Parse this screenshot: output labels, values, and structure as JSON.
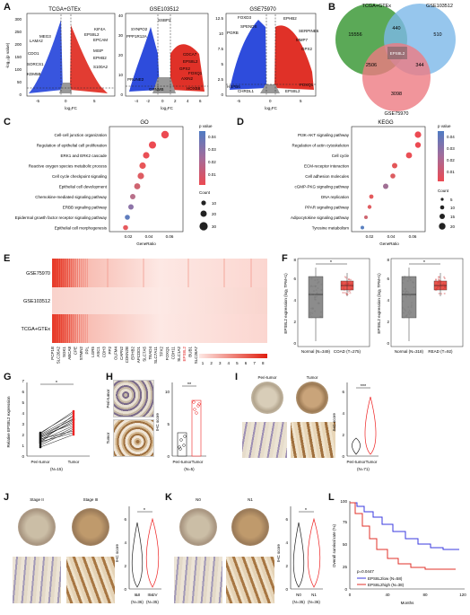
{
  "panels": {
    "a": {
      "label": "A",
      "plots": [
        {
          "title": "TCGA+GTEx",
          "genes": [
            "LAMA2",
            "MEG3",
            "CDO1",
            "SORCS1",
            "KDM5B",
            "EPS8L2",
            "KIF4A",
            "EPCAM",
            "MISP",
            "EPHB2",
            "S100A2"
          ],
          "xticks": [
            "-5",
            "0",
            "5"
          ],
          "yticks": [
            "0",
            "50",
            "100",
            "150",
            "200",
            "250",
            "300"
          ]
        },
        {
          "title": "GSE103512",
          "genes": [
            "SSBP2",
            "SYNPO2",
            "PPP1R12A",
            "PRUNE2",
            "GPNMB",
            "CDCA7",
            "EPS8L2",
            "GPX2",
            "FOXQ1",
            "AXIN2",
            "HOXB8"
          ],
          "xticks": [
            "-4",
            "-2",
            "0",
            "2",
            "4",
            "6"
          ],
          "yticks": [
            "0",
            "10",
            "20",
            "30",
            "40"
          ]
        },
        {
          "title": "GSE75970",
          "genes": [
            "FOXD3",
            "SPENDS",
            "PGRB",
            "HSPB6",
            "CHRDL1",
            "EPHB2",
            "SERPINB5",
            "MMP7",
            "GPX2",
            "FOXQ1",
            "EPS8L2"
          ],
          "xticks": [
            "-5",
            "0",
            "5"
          ],
          "yticks": [
            "0",
            "2.5",
            "5",
            "7.5",
            "10",
            "12.5"
          ]
        }
      ],
      "xlabel": "log₂FC",
      "ylabel": "-log₁₀(p value)"
    },
    "b": {
      "label": "B",
      "sets": [
        "TCGA+GTEx",
        "GSE103512",
        "GSE75970"
      ],
      "counts": [
        "15556",
        "440",
        "510",
        "2506",
        "344",
        "3098"
      ],
      "center": "EPS8L2"
    },
    "c": {
      "label": "C",
      "title": "GO",
      "terms": [
        "Cell-cell junction organization",
        "Regulation of epithelial cell proliferation",
        "ERK1 and ERK2 cascade",
        "Reactive oxygen species metabolic process",
        "Cell cycle checkpoint signaling",
        "Epithelial cell development",
        "Chemokine-mediated signaling pathway",
        "ERBB signaling pathway",
        "Epidermal growth factor receptor signaling pathway",
        "Epithelial cell morphogenesis"
      ],
      "xlabel": "GeneRatio",
      "xticks": [
        "0.02",
        "0.04",
        "0.06"
      ],
      "pvalue_title": "p value",
      "pvalue_ticks": [
        "0.04",
        "0.03",
        "0.02",
        "0.01"
      ],
      "count_title": "Count",
      "count_items": [
        "10",
        "20",
        "30"
      ]
    },
    "d": {
      "label": "D",
      "title": "KEGG",
      "terms": [
        "PI3K-AKT signaling pathway",
        "Regulation of actin cytoskeleton",
        "Cell cycle",
        "ECM-receptor interaction",
        "Cell adhesion molecules",
        "cGMP-PKG signaling pathway",
        "DNA replication",
        "PPAR signaling pathway",
        "Adipocytokine signaling pathway",
        "Tyrosine metabolism"
      ],
      "xlabel": "GeneRatio",
      "xticks": [
        "0.02",
        "0.04",
        "0.06"
      ],
      "pvalue_title": "p value",
      "pvalue_ticks": [
        "0.04",
        "0.03",
        "0.02",
        "0.01"
      ],
      "count_title": "Count",
      "count_items": [
        "5",
        "10",
        "15",
        "20"
      ]
    },
    "e": {
      "label": "E",
      "rows": [
        "GSE75970",
        "GSE103512",
        "TCGA+GTEx"
      ],
      "genes": [
        "PCP1B",
        "SLC26A2",
        "SGK1",
        "ABCA8",
        "CPE",
        "STMN2",
        "PPL",
        "LGR5",
        "ASC1",
        "CDH3",
        "PP2",
        "OLFM4",
        "CAPN2",
        "CDKN2B",
        "EPHB2",
        "APCDD1",
        "SLC7A5",
        "TEAD4",
        "SLC7A11",
        "TPX2",
        "FOXQ1",
        "CDH11",
        "SLC1A2",
        "EPS8L2",
        "BUB1",
        "SLC26A7"
      ],
      "scale_labels": [
        "1",
        "2",
        "3",
        "4",
        "5",
        "6",
        "7",
        "8"
      ]
    },
    "f": {
      "label": "F",
      "ylabel": "EPS8L2 expression (log₂ TPM+1)",
      "plots": [
        {
          "groups": [
            "Normal (N=349)",
            "COAD (T=275)"
          ],
          "sig": "*"
        },
        {
          "groups": [
            "Normal (N=318)",
            "READ (T=92)"
          ],
          "sig": "*"
        }
      ],
      "yticks": [
        "0",
        "2",
        "4",
        "6",
        "8"
      ]
    },
    "g": {
      "label": "G",
      "ylabel": "Relative EPS8L2 expression",
      "xlabels": [
        "Peri-tumor",
        "Tumor"
      ],
      "n": "(N=15)",
      "sig": "*",
      "yticks": [
        "0",
        "1",
        "2",
        "3",
        "4",
        "5",
        "6",
        "7"
      ]
    },
    "h": {
      "label": "H",
      "row_labels": [
        "Peri-tumor",
        "Tumor"
      ],
      "ylabel": "IHC score",
      "xlabels": [
        "Peri-tumor",
        "Tumor"
      ],
      "n": "(N=5)",
      "sig": "**",
      "yticks": [
        "0",
        "5",
        "10"
      ]
    },
    "i": {
      "label": "I",
      "titles": [
        "Peri-tumor",
        "Tumor"
      ],
      "ylabel": "IHC score",
      "xlabels": [
        "Peri-tumor",
        "Tumor"
      ],
      "n": "(N=71)",
      "sig": "***",
      "yticks": [
        "0",
        "2",
        "4",
        "6"
      ]
    },
    "j": {
      "label": "J",
      "titles": [
        "Stage II",
        "Stage III"
      ],
      "ylabel": "IHC score",
      "xlabels": [
        "I&II",
        "III&IV"
      ],
      "ns": [
        "(N=36)",
        "(N=35)"
      ],
      "sig": "*",
      "yticks": [
        "0",
        "2",
        "4",
        "6"
      ]
    },
    "k": {
      "label": "K",
      "titles": [
        "N0",
        "N1"
      ],
      "ylabel": "IHC score",
      "xlabels": [
        "N0",
        "N1"
      ],
      "ns": [
        "(N=35)",
        "(N=36)"
      ],
      "sig": "*",
      "yticks": [
        "0",
        "2",
        "4",
        "6"
      ]
    },
    "l": {
      "label": "L",
      "ylabel": "Overall survival rate (%)",
      "xlabel": "Months",
      "xticks": [
        "0",
        "40",
        "80",
        "120"
      ],
      "yticks": [
        "0",
        "25",
        "50",
        "75",
        "100"
      ],
      "pvalue": "p=0.0447",
      "legend": [
        "EPS8L2low (N=58)",
        "EPS8L2high (N=38)"
      ],
      "colors": [
        "#3a3adf",
        "#e0302a"
      ]
    }
  }
}
